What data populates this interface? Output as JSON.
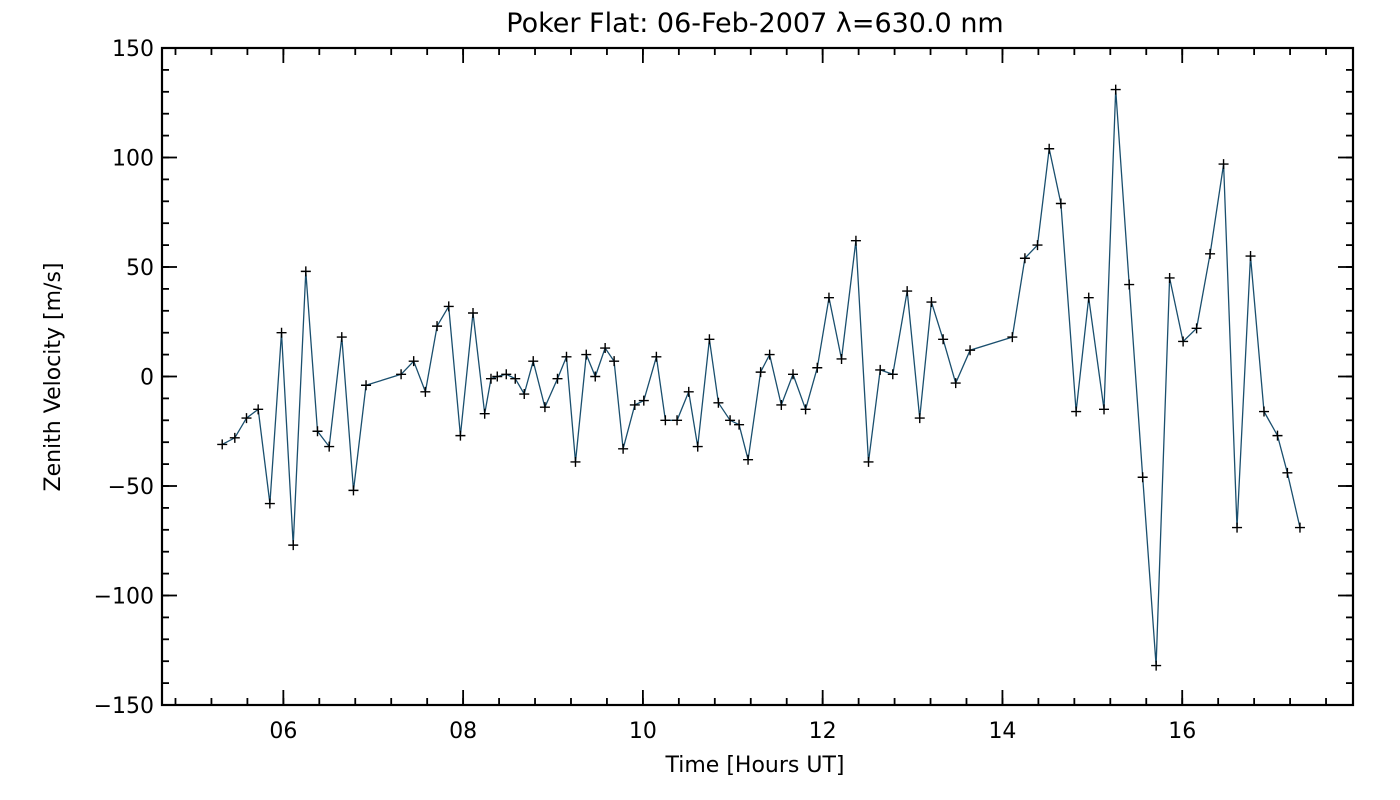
{
  "chart_data": {
    "type": "line",
    "title": "Poker Flat: 06-Feb-2007 λ=630.0 nm",
    "xlabel": "Time [Hours UT]",
    "ylabel": "Zenith Velocity [m/s]",
    "xlim": [
      4.65,
      17.9
    ],
    "ylim": [
      -150,
      150
    ],
    "xticks": [
      6,
      8,
      10,
      12,
      14,
      16
    ],
    "xtick_labels": [
      "06",
      "08",
      "10",
      "12",
      "14",
      "16"
    ],
    "yticks": [
      -150,
      -100,
      -50,
      0,
      50,
      100,
      150
    ],
    "ytick_labels": [
      "−150",
      "−100",
      "−50",
      "0",
      "50",
      "100",
      "150"
    ],
    "grid": false,
    "line_color": "#1a4f6e",
    "marker": "plus",
    "series": [
      {
        "x": [
          5.32,
          5.46,
          5.59,
          5.72,
          5.85,
          5.98,
          6.11,
          6.25,
          6.38,
          6.51,
          6.65,
          6.78,
          6.92,
          7.31,
          7.45,
          7.58,
          7.71,
          7.84,
          7.97,
          8.11,
          8.24,
          8.31,
          8.38,
          8.48,
          8.58,
          8.68,
          8.78,
          8.91,
          9.05,
          9.15,
          9.25,
          9.37,
          9.47,
          9.58,
          9.68,
          9.78,
          9.91,
          10.01,
          10.15,
          10.25,
          10.38,
          10.51,
          10.61,
          10.74,
          10.84,
          10.97,
          11.07,
          11.17,
          11.31,
          11.41,
          11.54,
          11.67,
          11.81,
          11.94,
          12.07,
          12.21,
          12.37,
          12.51,
          12.64,
          12.78,
          12.94,
          13.08,
          13.21,
          13.34,
          13.48,
          13.64,
          14.11,
          14.25,
          14.39,
          14.52,
          14.65,
          14.82,
          14.96,
          15.13,
          15.26,
          15.41,
          15.56,
          15.71,
          15.86,
          16.01,
          16.16,
          16.31,
          16.46,
          16.61,
          16.76,
          16.91,
          17.06,
          17.17,
          17.31
        ],
        "y": [
          -31,
          -28,
          -19,
          -15,
          -58,
          20,
          -77,
          48,
          -25,
          -32,
          18,
          -52,
          -4,
          1,
          7,
          -7,
          23,
          32,
          -27,
          29,
          -17,
          -1,
          0,
          1,
          -1,
          -8,
          7,
          -14,
          -1,
          9,
          -39,
          10,
          0,
          13,
          7,
          -33,
          -13,
          -11,
          9,
          -20,
          -20,
          -7,
          -32,
          17,
          -12,
          -20,
          -22,
          -38,
          2,
          10,
          -13,
          1,
          -15,
          4,
          36,
          8,
          62,
          -39,
          3,
          1,
          39,
          -19,
          34,
          17,
          -3,
          12,
          18,
          54,
          60,
          104,
          79,
          -16,
          36,
          -15,
          131,
          42,
          -46,
          -132,
          45,
          16,
          22,
          56,
          97,
          -69,
          55,
          -16,
          -27,
          -44,
          -69
        ]
      }
    ]
  }
}
